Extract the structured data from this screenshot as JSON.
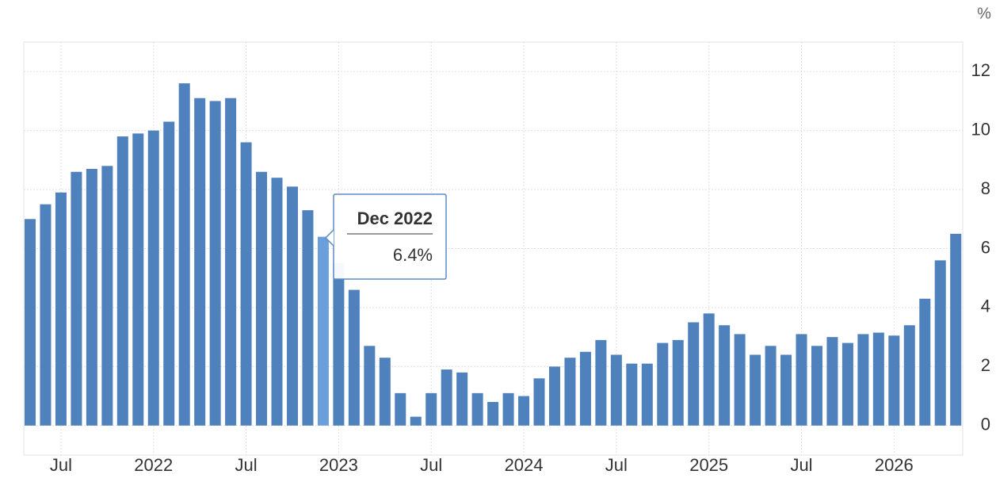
{
  "chart_data": {
    "type": "bar",
    "unit": "%",
    "categories": [
      null,
      null,
      "Jul",
      null,
      null,
      null,
      null,
      null,
      "2022",
      null,
      null,
      null,
      null,
      null,
      "Jul",
      null,
      null,
      null,
      null,
      null,
      "2023",
      null,
      null,
      null,
      null,
      null,
      "Jul",
      null,
      null,
      null,
      null,
      null,
      "2024",
      null,
      null,
      null,
      null,
      null,
      "Jul",
      null,
      null,
      null,
      null,
      null,
      "2025",
      null,
      null,
      null,
      null,
      null,
      "Jul",
      null,
      null,
      null,
      null,
      null,
      "2026",
      null,
      null,
      null,
      null
    ],
    "values": [
      7.0,
      7.5,
      7.9,
      8.6,
      8.7,
      8.8,
      9.8,
      9.9,
      10.0,
      10.3,
      11.6,
      11.1,
      11.0,
      11.1,
      9.6,
      8.6,
      8.4,
      8.1,
      7.3,
      6.4,
      5.5,
      4.6,
      2.7,
      2.3,
      1.1,
      0.3,
      1.1,
      1.9,
      1.8,
      1.1,
      0.8,
      1.1,
      1.0,
      1.6,
      2.0,
      2.3,
      2.5,
      2.9,
      2.4,
      2.1,
      2.1,
      2.8,
      2.9,
      3.5,
      3.8,
      3.4,
      3.1,
      2.4,
      2.7,
      2.4,
      3.1,
      2.7,
      3.0,
      2.8,
      3.1,
      3.15,
      3.05,
      3.4,
      4.3,
      5.6,
      6.5
    ],
    "color": "#4f81bd",
    "highlight_color": "#6b9fdc",
    "ylim": [
      -1,
      13
    ],
    "yticks": [
      0,
      2,
      4,
      6,
      8,
      10,
      12
    ],
    "grid": true,
    "tooltip": {
      "title": "Dec 2022",
      "label": "6.4%"
    }
  }
}
